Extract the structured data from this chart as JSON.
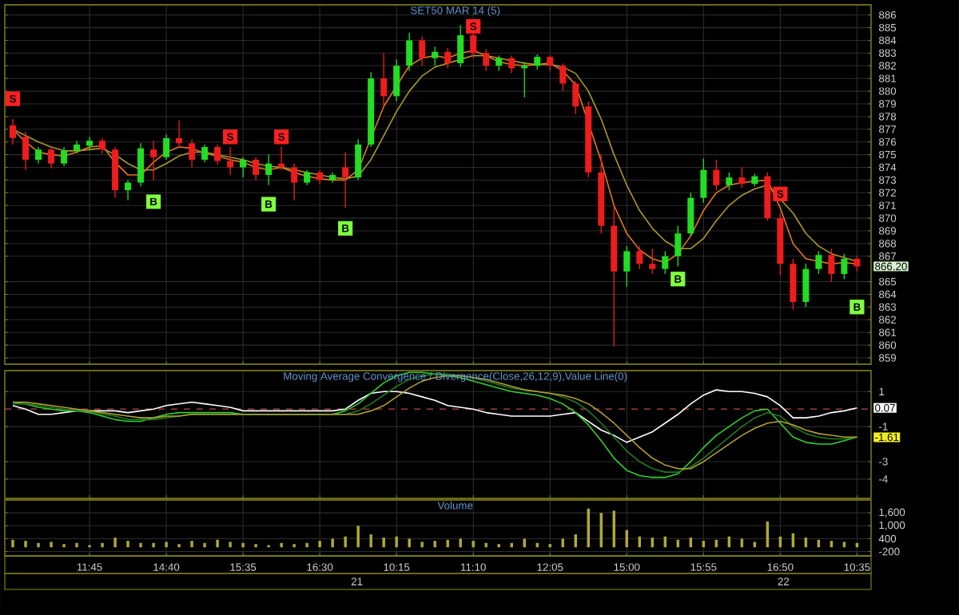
{
  "chart_data": [
    {
      "type": "candlestick",
      "title": "SET50 MAR 14 (5)",
      "categories": [
        null,
        null,
        null,
        null,
        null,
        null,
        null,
        null,
        null,
        null,
        null,
        null,
        null,
        null,
        null,
        null,
        null,
        null,
        null,
        null,
        null,
        null,
        null,
        null,
        null,
        null,
        null,
        null,
        null,
        null,
        null,
        null,
        null,
        null,
        null,
        null,
        null,
        null,
        null,
        null,
        null,
        null,
        null,
        null,
        null,
        null,
        null,
        null,
        null,
        null,
        null,
        null,
        null,
        null,
        null,
        null,
        null,
        null,
        null,
        null,
        null,
        null,
        null,
        null,
        null,
        null,
        null
      ],
      "ohlc": [
        [
          877.3,
          877.8,
          875.8,
          876.3
        ],
        [
          876.4,
          876.8,
          873.8,
          874.6
        ],
        [
          874.6,
          875.6,
          874.3,
          875.4
        ],
        [
          875.4,
          875.6,
          873.9,
          874.3
        ],
        [
          874.3,
          875.6,
          874.1,
          875.3
        ],
        [
          875.3,
          876.1,
          875.1,
          875.8
        ],
        [
          875.7,
          876.4,
          875.4,
          876.1
        ],
        [
          876.1,
          876.3,
          875.1,
          875.4
        ],
        [
          875.4,
          875.6,
          871.6,
          872.2
        ],
        [
          872.2,
          873.0,
          871.4,
          872.8
        ],
        [
          872.8,
          875.9,
          872.5,
          875.5
        ],
        [
          875.4,
          876.1,
          873.0,
          874.8
        ],
        [
          874.8,
          876.6,
          874.6,
          876.3
        ],
        [
          876.3,
          877.7,
          875.6,
          875.9
        ],
        [
          875.9,
          876.2,
          874.0,
          874.6
        ],
        [
          874.6,
          875.8,
          874.4,
          875.6
        ],
        [
          875.6,
          875.8,
          874.2,
          874.5
        ],
        [
          874.5,
          875.6,
          873.4,
          874.0
        ],
        [
          874.0,
          874.8,
          873.2,
          874.6
        ],
        [
          874.6,
          874.8,
          873.0,
          873.4
        ],
        [
          873.4,
          875.0,
          872.6,
          874.3
        ],
        [
          874.3,
          875.6,
          873.8,
          874.0
        ],
        [
          874.0,
          874.3,
          871.4,
          872.8
        ],
        [
          872.8,
          873.8,
          872.6,
          873.6
        ],
        [
          873.6,
          873.8,
          872.7,
          873.0
        ],
        [
          873.0,
          873.6,
          872.8,
          873.4
        ],
        [
          874.0,
          875.2,
          870.8,
          873.2
        ],
        [
          873.2,
          876.2,
          873.0,
          875.8
        ],
        [
          875.8,
          881.5,
          875.6,
          881.0
        ],
        [
          881.0,
          883.0,
          878.8,
          879.6
        ],
        [
          879.6,
          882.5,
          879.2,
          882.0
        ],
        [
          882.0,
          884.6,
          881.6,
          884.0
        ],
        [
          884.0,
          884.3,
          882.0,
          882.6
        ],
        [
          882.6,
          883.5,
          882.0,
          883.1
        ],
        [
          883.1,
          883.4,
          881.8,
          882.2
        ],
        [
          882.2,
          885.2,
          881.9,
          884.4
        ],
        [
          884.4,
          884.6,
          882.6,
          883.0
        ],
        [
          883.0,
          883.3,
          881.6,
          882.0
        ],
        [
          882.0,
          882.8,
          881.6,
          882.6
        ],
        [
          882.6,
          882.8,
          881.4,
          881.8
        ],
        [
          881.8,
          882.3,
          879.5,
          882.0
        ],
        [
          882.0,
          882.9,
          881.7,
          882.7
        ],
        [
          882.7,
          882.8,
          881.6,
          882.0
        ],
        [
          882.0,
          882.2,
          880.0,
          880.6
        ],
        [
          880.6,
          880.8,
          878.2,
          878.8
        ],
        [
          878.8,
          879.2,
          873.2,
          873.6
        ],
        [
          873.6,
          875.0,
          868.8,
          869.4
        ],
        [
          869.4,
          871.0,
          859.9,
          865.8
        ],
        [
          865.8,
          867.8,
          864.6,
          867.4
        ],
        [
          867.4,
          867.8,
          866.0,
          866.4
        ],
        [
          866.4,
          867.6,
          865.6,
          866.0
        ],
        [
          866.0,
          867.4,
          865.6,
          867.0
        ],
        [
          867.0,
          869.4,
          866.2,
          868.8
        ],
        [
          868.8,
          872.0,
          868.6,
          871.6
        ],
        [
          871.6,
          874.7,
          871.2,
          873.8
        ],
        [
          873.8,
          874.6,
          872.2,
          872.6
        ],
        [
          872.6,
          873.6,
          872.2,
          873.2
        ],
        [
          873.2,
          874.0,
          872.4,
          872.7
        ],
        [
          872.7,
          873.5,
          872.5,
          873.3
        ],
        [
          873.3,
          873.6,
          869.8,
          870.0
        ],
        [
          870.0,
          870.4,
          865.5,
          866.4
        ],
        [
          866.4,
          866.8,
          862.8,
          863.4
        ],
        [
          863.4,
          866.4,
          863.0,
          866.0
        ],
        [
          866.0,
          867.4,
          865.6,
          867.1
        ],
        [
          867.1,
          867.6,
          865.0,
          865.6
        ],
        [
          865.6,
          867.2,
          865.2,
          866.8
        ],
        [
          866.8,
          867.0,
          865.8,
          866.2
        ]
      ],
      "series": [
        {
          "type": "line",
          "color": "#e07820",
          "values": [
            877,
            876,
            875.2,
            875,
            874.9,
            875.2,
            875.6,
            875.7,
            874.4,
            873.4,
            873.4,
            874.4,
            875.2,
            875.6,
            875.5,
            875.1,
            874.9,
            874.6,
            874.4,
            874.0,
            873.8,
            874.0,
            873.6,
            873.3,
            873.1,
            873.0,
            873.0,
            873.8,
            null,
            878.8,
            880.4,
            882.0,
            882.6,
            882.8,
            882.6,
            883.0,
            883.2,
            882.8,
            882.3,
            882.1,
            882.0,
            882.1,
            882.2,
            881.6,
            880.5,
            null,
            874.5,
            871.0,
            868.8,
            867.5,
            866.8,
            866.5,
            867.2,
            868.6,
            870.6,
            872.0,
            872.6,
            872.8,
            872.9,
            873.0,
            870.8,
            868.0,
            866.8,
            866.6,
            866.4,
            866.5,
            866.4
          ]
        },
        {
          "type": "line",
          "color": "#a89830",
          "values": [
            877,
            876.5,
            876,
            875.6,
            875.3,
            875.3,
            875.4,
            875.5,
            875.0,
            874.3,
            873.8,
            873.8,
            874.3,
            874.9,
            875.2,
            875.2,
            875.0,
            874.8,
            874.6,
            874.3,
            874.1,
            874.0,
            873.8,
            873.6,
            873.4,
            873.2,
            873.1,
            873.3,
            874.6,
            876.5,
            878.4,
            880.0,
            881.2,
            881.9,
            882.2,
            882.5,
            882.8,
            882.8,
            882.6,
            882.4,
            882.2,
            882.1,
            882.1,
            881.9,
            881.4,
            880.0,
            877.8,
            875.0,
            872.6,
            870.6,
            869.2,
            868.2,
            867.6,
            867.6,
            868.4,
            869.8,
            871.0,
            871.8,
            872.3,
            872.6,
            null,
            870.4,
            868.8,
            867.8,
            867.2,
            866.9,
            866.6
          ]
        },
        {
          "type": "scatter",
          "color": "#ff2020",
          "marker": "square",
          "values": [
            879.4,
            null,
            null,
            null,
            null,
            null,
            null,
            null,
            null,
            null,
            null,
            null,
            null,
            null,
            null,
            null,
            null,
            876.4,
            null,
            null,
            null,
            876.4,
            null,
            null,
            null,
            null,
            null,
            null,
            null,
            null,
            null,
            null,
            null,
            null,
            null,
            null,
            885.1,
            null,
            null,
            null,
            null,
            null,
            null,
            null,
            null,
            null,
            null,
            null,
            null,
            null,
            null,
            null,
            null,
            null,
            null,
            null,
            null,
            null,
            null,
            null,
            871.9,
            null,
            null,
            null,
            null,
            null,
            null
          ],
          "value_labels": [
            "S",
            null,
            null,
            null,
            null,
            null,
            null,
            null,
            null,
            null,
            null,
            null,
            null,
            null,
            null,
            null,
            null,
            "S",
            null,
            null,
            null,
            "S",
            null,
            null,
            null,
            null,
            null,
            null,
            null,
            null,
            null,
            null,
            null,
            null,
            null,
            null,
            "S",
            null,
            null,
            null,
            null,
            null,
            null,
            null,
            null,
            null,
            null,
            null,
            null,
            null,
            null,
            null,
            null,
            null,
            null,
            null,
            null,
            null,
            null,
            null,
            "S",
            null,
            null,
            null,
            null,
            null,
            null
          ]
        },
        {
          "type": "scatter",
          "color": "#80ff40",
          "marker": "square",
          "values": [
            null,
            null,
            null,
            null,
            null,
            null,
            null,
            null,
            null,
            null,
            null,
            871.3,
            null,
            null,
            null,
            null,
            null,
            null,
            null,
            null,
            871.1,
            null,
            null,
            null,
            null,
            null,
            869.2,
            null,
            null,
            null,
            null,
            null,
            null,
            null,
            null,
            null,
            null,
            null,
            null,
            null,
            null,
            null,
            null,
            null,
            null,
            null,
            null,
            null,
            null,
            null,
            null,
            null,
            865.2,
            null,
            null,
            null,
            null,
            null,
            null,
            null,
            null,
            null,
            null,
            null,
            null,
            null,
            863.0
          ],
          "value_labels": [
            null,
            null,
            null,
            null,
            null,
            null,
            null,
            null,
            null,
            null,
            null,
            "B",
            null,
            null,
            null,
            null,
            null,
            null,
            null,
            null,
            "B",
            null,
            null,
            null,
            null,
            null,
            "B",
            null,
            null,
            null,
            null,
            null,
            null,
            null,
            null,
            null,
            null,
            null,
            null,
            null,
            null,
            null,
            null,
            null,
            null,
            null,
            null,
            null,
            null,
            null,
            null,
            null,
            "B",
            null,
            null,
            null,
            null,
            null,
            null,
            null,
            null,
            null,
            null,
            null,
            null,
            null,
            "B"
          ]
        }
      ],
      "ylim": [
        858.5,
        886.8
      ],
      "yticks": [
        859,
        860,
        861,
        862,
        863,
        864,
        865,
        867,
        868,
        869,
        870,
        871,
        872,
        873,
        874,
        875,
        876,
        877,
        878,
        879,
        880,
        881,
        882,
        883,
        884,
        885,
        886
      ],
      "grid": true,
      "tick_labels": "y",
      "annotations": [
        "866.20"
      ]
    },
    {
      "type": "line",
      "title": "Moving Average Convergence / Divergence(Close,26,12,9),Value Line(0)",
      "categories": [
        null,
        null,
        null,
        null,
        null,
        null,
        null,
        null,
        null,
        null,
        null,
        null,
        null,
        null,
        null,
        null,
        null,
        null,
        null,
        null,
        null,
        null,
        null,
        null,
        null,
        null,
        null,
        null,
        null,
        null,
        null,
        null,
        null,
        null,
        null,
        null,
        null,
        null,
        null,
        null,
        null,
        null,
        null,
        null,
        null,
        null,
        null,
        null,
        null,
        null,
        null,
        null,
        null,
        null,
        null,
        null,
        null,
        null,
        null,
        null,
        null,
        null,
        null,
        null,
        null,
        null,
        null
      ],
      "series": [
        {
          "color": "#ffffff",
          "values": [
            0.2,
            0,
            -0.3,
            -0.3,
            -0.2,
            -0.1,
            -0.1,
            -0.1,
            -0.1,
            -0.2,
            -0.1,
            0,
            0.2,
            0.3,
            0.4,
            0.3,
            0.2,
            0.1,
            -0.1,
            -0.1,
            -0.1,
            -0.1,
            -0.1,
            -0.1,
            -0.1,
            -0.1,
            0,
            0.5,
            0.9,
            1.0,
            1.0,
            0.9,
            0.7,
            0.5,
            0.2,
            0.1,
            0,
            -0.2,
            -0.3,
            -0.4,
            -0.4,
            -0.4,
            -0.4,
            -0.3,
            -0.2,
            -0.7,
            -1.2,
            -1.5,
            -1.9,
            -1.6,
            -1.3,
            -0.8,
            -0.3,
            0.3,
            0.8,
            1.1,
            1.0,
            1.0,
            0.9,
            0.7,
            0.2,
            -0.5,
            -0.5,
            -0.4,
            -0.2,
            -0.1,
            0.07
          ]
        },
        {
          "color": "#30d030",
          "values": [
            0.4,
            0.3,
            0.1,
            0,
            -0.1,
            -0.1,
            -0.2,
            -0.4,
            -0.6,
            -0.7,
            -0.7,
            -0.5,
            -0.3,
            -0.2,
            -0.2,
            -0.2,
            -0.2,
            -0.2,
            -0.3,
            -0.3,
            -0.3,
            -0.3,
            -0.3,
            -0.3,
            -0.3,
            -0.3,
            -0.1,
            0.3,
            0.9,
            1.5,
            1.9,
            2.1,
            2.1,
            2.0,
            1.9,
            1.8,
            1.6,
            1.4,
            1.2,
            1.0,
            0.9,
            0.8,
            0.6,
            0.3,
            -0.2,
            -0.9,
            -1.8,
            -2.8,
            -3.5,
            -3.8,
            -3.9,
            -3.9,
            -3.7,
            -3.0,
            -2.2,
            -1.5,
            -1.0,
            -0.5,
            -0.1,
            0,
            -0.8,
            -1.6,
            -1.9,
            -2.0,
            -2.0,
            -1.8,
            -1.6
          ]
        },
        {
          "color": "#1f7a1f",
          "values": [
            0.3,
            0.3,
            0.2,
            0.1,
            0,
            -0.1,
            -0.1,
            -0.3,
            -0.4,
            -0.6,
            -0.6,
            -0.6,
            -0.5,
            -0.4,
            -0.3,
            -0.3,
            -0.3,
            -0.3,
            -0.3,
            -0.3,
            -0.3,
            -0.3,
            -0.3,
            -0.3,
            -0.3,
            -0.3,
            -0.3,
            -0.1,
            0.3,
            0.8,
            1.3,
            1.7,
            1.9,
            2.0,
            2.0,
            1.9,
            1.8,
            1.6,
            1.4,
            1.2,
            1.1,
            1.0,
            0.9,
            0.7,
            0.4,
            -0.1,
            -0.8,
            -1.6,
            -2.4,
            -3.0,
            -3.4,
            -3.6,
            -3.6,
            -3.3,
            -2.8,
            -2.2,
            -1.6,
            -1.0,
            -0.5,
            -0.2,
            -0.4,
            -1.0,
            -1.4,
            -1.6,
            -1.7,
            -1.7,
            -1.6
          ]
        },
        {
          "color": "#b0a030",
          "values": [
            0.4,
            0.4,
            0.3,
            0.2,
            0.1,
            0,
            -0.1,
            -0.2,
            -0.3,
            -0.4,
            -0.5,
            -0.5,
            -0.4,
            -0.4,
            -0.3,
            -0.3,
            -0.3,
            -0.3,
            -0.3,
            -0.3,
            -0.3,
            -0.3,
            -0.3,
            -0.3,
            -0.3,
            -0.3,
            -0.3,
            -0.3,
            -0.1,
            0.2,
            0.7,
            1.2,
            1.6,
            1.8,
            1.9,
            1.9,
            1.8,
            1.7,
            1.5,
            1.3,
            1.1,
            1.0,
            0.9,
            0.8,
            0.6,
            0.3,
            -0.2,
            -0.8,
            -1.5,
            -2.2,
            -2.8,
            -3.2,
            -3.4,
            -3.4,
            -3.0,
            -2.5,
            -2.0,
            -1.5,
            -1.1,
            -0.8,
            -0.7,
            -0.9,
            -1.2,
            -1.4,
            -1.5,
            -1.6,
            -1.6
          ]
        }
      ],
      "ylim": [
        -5.1,
        2.2
      ],
      "yticks": [
        1,
        -1,
        -3,
        -4
      ],
      "grid": true,
      "tick_labels": "y",
      "ref_lines": [
        {
          "axis": "y",
          "value": 0,
          "color": "#c04848",
          "line_style": "dashed"
        }
      ],
      "annotations": [
        {
          "text": "0.07",
          "y": 0.07
        },
        {
          "text": "-1.61",
          "y": -1.61
        }
      ]
    },
    {
      "type": "bar",
      "title": "Volume",
      "categories": [
        null,
        null,
        null,
        null,
        null,
        null,
        "11:45",
        null,
        null,
        null,
        null,
        null,
        "14:40",
        null,
        null,
        null,
        null,
        null,
        "15:35",
        null,
        null,
        null,
        null,
        null,
        "16:30",
        null,
        null,
        null,
        null,
        null,
        "10:15",
        null,
        null,
        null,
        null,
        null,
        "11:10",
        null,
        null,
        null,
        null,
        null,
        "12:05",
        null,
        null,
        null,
        null,
        null,
        "15:00",
        null,
        null,
        null,
        null,
        null,
        "15:55",
        null,
        null,
        null,
        null,
        null,
        "16:50",
        null,
        null,
        null,
        null,
        null,
        "10:35"
      ],
      "values": [
        350,
        300,
        200,
        250,
        150,
        200,
        100,
        200,
        450,
        300,
        200,
        200,
        250,
        150,
        300,
        200,
        350,
        250,
        200,
        150,
        100,
        200,
        150,
        200,
        300,
        400,
        500,
        1000,
        600,
        450,
        500,
        400,
        250,
        300,
        350,
        400,
        300,
        200,
        150,
        200,
        400,
        200,
        150,
        400,
        600,
        1800,
        1600,
        1700,
        800,
        500,
        450,
        500,
        350,
        450,
        300,
        350,
        500,
        400,
        250,
        1200,
        500,
        650,
        450,
        350,
        300,
        250,
        200
      ],
      "color": "#b0a838",
      "ylim": [
        -400,
        2200
      ],
      "yticks": [
        {
          "value": 1600,
          "label": "1,600"
        },
        {
          "value": 1000,
          "label": "1,000"
        },
        400,
        -200
      ],
      "grid": true,
      "annotations": [
        "21",
        "22"
      ]
    }
  ]
}
